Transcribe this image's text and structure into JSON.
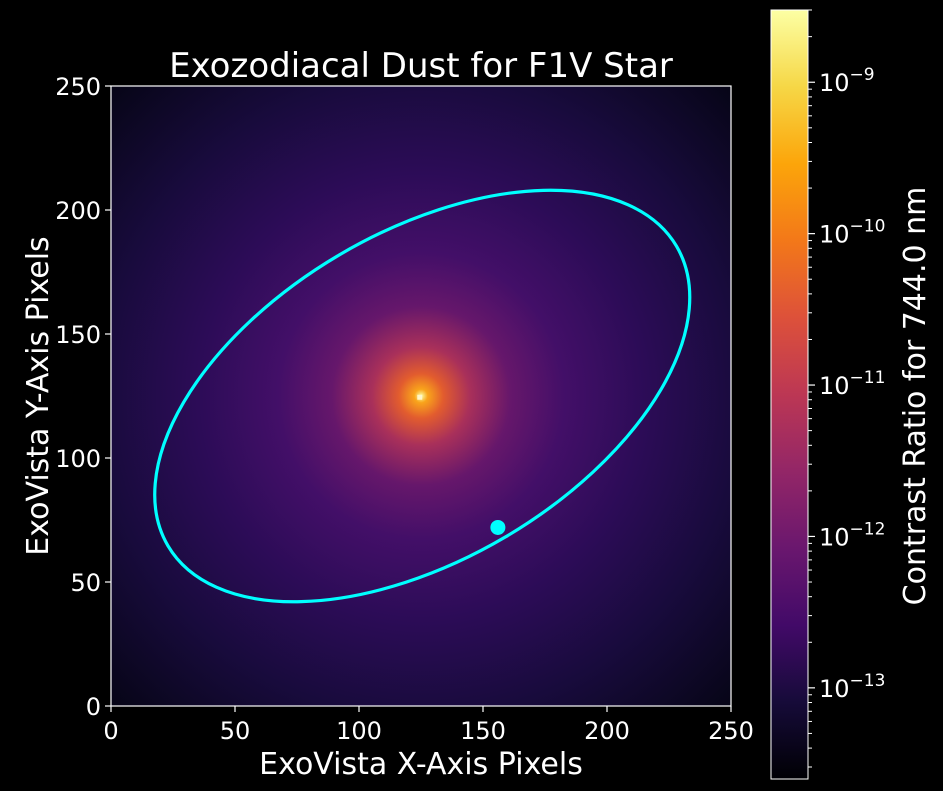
{
  "chart_data": {
    "type": "heatmap",
    "title": "Exozodiacal Dust for F1V Star",
    "xlabel": "ExoVista X-Axis Pixels",
    "ylabel": "ExoVista Y-Axis Pixels",
    "xlim": [
      0,
      250
    ],
    "ylim": [
      0,
      250
    ],
    "xticks": [
      "0",
      "50",
      "100",
      "150",
      "200",
      "250"
    ],
    "yticks": [
      "0",
      "50",
      "100",
      "150",
      "200",
      "250"
    ],
    "colorbar": {
      "label": "Contrast Ratio for 744.0 nm",
      "scale": "log",
      "colormap": "inferno",
      "range": [
        2.5e-14,
        3e-09
      ],
      "ticks": [
        {
          "value": 1e-13,
          "base": "10",
          "exp": "−13"
        },
        {
          "value": 1e-12,
          "base": "10",
          "exp": "−12"
        },
        {
          "value": 1e-11,
          "base": "10",
          "exp": "−11"
        },
        {
          "value": 1e-10,
          "base": "10",
          "exp": "−10"
        },
        {
          "value": 1e-09,
          "base": "10",
          "exp": "−9"
        }
      ]
    },
    "star": {
      "x": 124.5,
      "y": 124.5
    },
    "orbit": {
      "color": "#00ffff",
      "center": [
        125.5,
        125
      ],
      "semi_major": 119,
      "semi_minor": 66,
      "rotation_deg": 30.5
    },
    "planet": {
      "x": 156,
      "y": 72,
      "color": "#00ffff"
    }
  }
}
